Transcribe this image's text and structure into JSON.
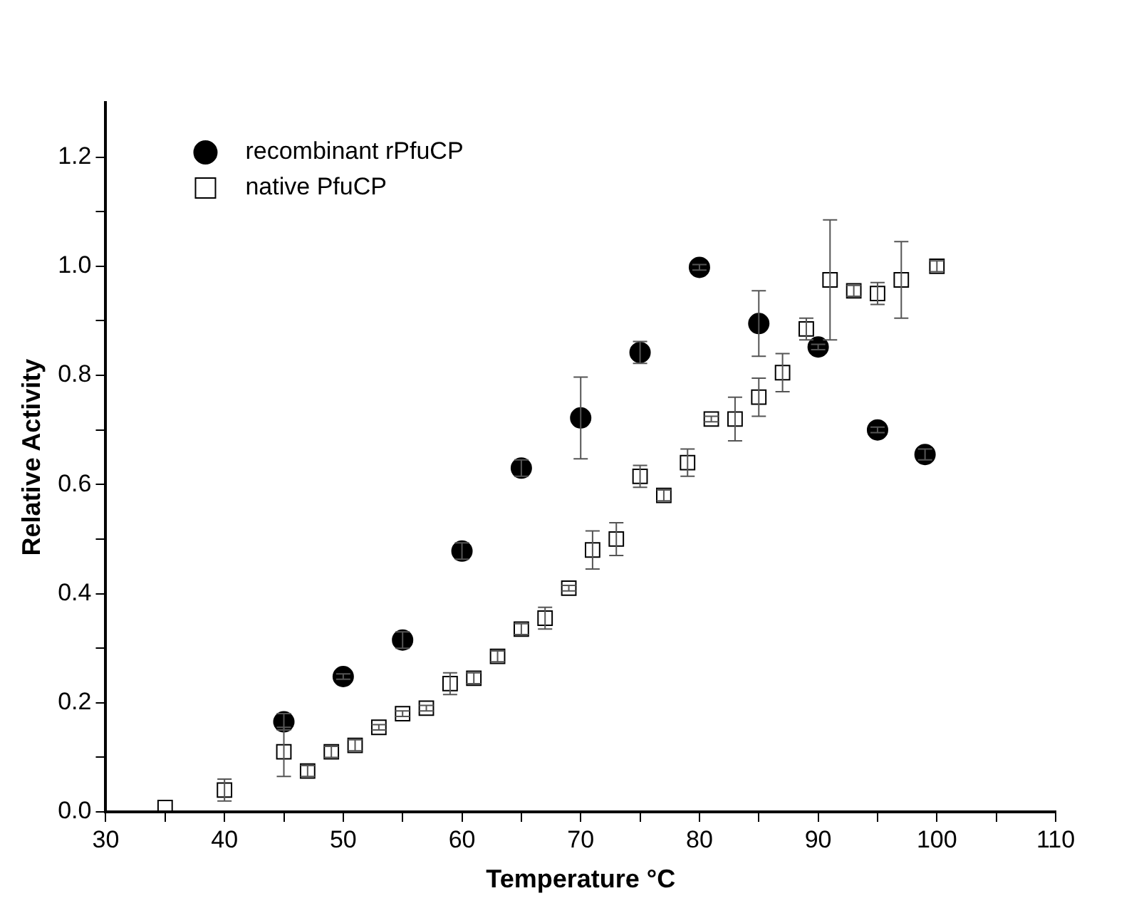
{
  "chart_data": {
    "type": "scatter",
    "xlabel": "Temperature °C",
    "ylabel": "Relative Activity",
    "xlim": [
      30,
      110
    ],
    "xticks": [
      30,
      {
        "value": 35,
        "label": null
      },
      40,
      {
        "value": 45,
        "label": null
      },
      50,
      {
        "value": 55,
        "label": null
      },
      60,
      {
        "value": 65,
        "label": null
      },
      70,
      {
        "value": 75,
        "label": null
      },
      80,
      {
        "value": 85,
        "label": null
      },
      90,
      {
        "value": 95,
        "label": null
      },
      100,
      {
        "value": 105,
        "label": null
      },
      110
    ],
    "ylim": [
      0,
      1.3
    ],
    "yticks": [
      "0.0",
      {
        "value": 0.1,
        "label": null
      },
      {
        "value": 0.2,
        "label": "0.2"
      },
      {
        "value": 0.3,
        "label": null
      },
      {
        "value": 0.4,
        "label": "0.4"
      },
      {
        "value": 0.5,
        "label": null
      },
      {
        "value": 0.6,
        "label": "0.6"
      },
      {
        "value": 0.7,
        "label": null
      },
      {
        "value": 0.8,
        "label": "0.8"
      },
      {
        "value": 0.9,
        "label": null
      },
      {
        "value": 1.0,
        "label": "1.0"
      },
      {
        "value": 1.1,
        "label": null
      },
      {
        "value": 1.2,
        "label": "1.2"
      }
    ],
    "grid": false,
    "legend": "top left",
    "series": [
      {
        "name": "recombinant rPfuCP",
        "color": "#000000",
        "marker": "circle",
        "x": [
          45,
          50,
          55,
          60,
          65,
          70,
          75,
          80,
          85,
          90,
          95,
          99
        ],
        "values": [
          0.165,
          0.248,
          0.315,
          0.478,
          0.63,
          0.722,
          0.842,
          0.998,
          0.895,
          0.852,
          0.7,
          0.655
        ],
        "errors": [
          0.015,
          0.005,
          0.015,
          0.015,
          0.015,
          0.075,
          0.02,
          0.005,
          0.06,
          0.005,
          0.005,
          0.01
        ]
      },
      {
        "name": "native PfuCP",
        "color": "#000000",
        "marker": "square",
        "x": [
          35,
          40,
          45,
          47,
          49,
          51,
          53,
          55,
          57,
          59,
          61,
          63,
          65,
          67,
          69,
          71,
          73,
          75,
          77,
          79,
          81,
          83,
          85,
          87,
          89,
          91,
          93,
          95,
          97,
          100
        ],
        "values": [
          0.008,
          0.04,
          0.11,
          0.075,
          0.11,
          0.122,
          0.155,
          0.18,
          0.19,
          0.235,
          0.245,
          0.285,
          0.335,
          0.355,
          0.41,
          0.48,
          0.5,
          0.615,
          0.58,
          0.64,
          0.72,
          0.72,
          0.76,
          0.805,
          0.885,
          0.975,
          0.955,
          0.95,
          0.975,
          1.0
        ],
        "errors": [
          null,
          0.02,
          0.045,
          0.01,
          0.01,
          0.01,
          0.005,
          0.005,
          0.005,
          0.02,
          0.01,
          0.01,
          0.01,
          0.02,
          0.005,
          0.035,
          0.03,
          0.02,
          0.01,
          0.025,
          0.005,
          0.04,
          0.035,
          0.035,
          0.02,
          0.11,
          0.01,
          0.02,
          0.07,
          0.01
        ]
      }
    ]
  }
}
